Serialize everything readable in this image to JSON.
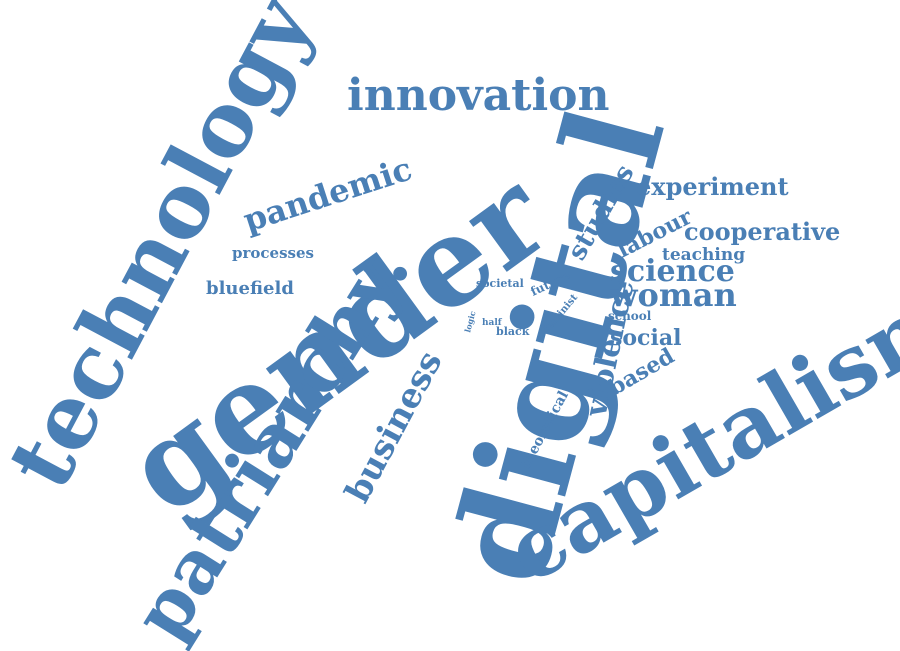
{
  "colors": {
    "word": "#4a7fb5",
    "background": "#ffffff"
  },
  "words": {
    "digital": "digital",
    "gender": "gender",
    "technology": "technology",
    "capitalism": "capitalism",
    "patriarchy": "patriarchy.",
    "innovation": "innovation",
    "pandemic": "pandemic",
    "business": "business",
    "violence": "violence",
    "science": "science",
    "woman": "woman",
    "studies": "studies",
    "experiment": "experiment",
    "cooperative": "cooperative",
    "labour": "labour",
    "teaching": "teaching",
    "social": "social",
    "based": "based",
    "bluefield": "bluefield",
    "processes": "processes",
    "theoretical": "theoretical",
    "societal": "societal",
    "future": "future",
    "feminist": "feminist",
    "black": "black",
    "half": "half",
    "logic": "logic",
    "school": "school"
  }
}
